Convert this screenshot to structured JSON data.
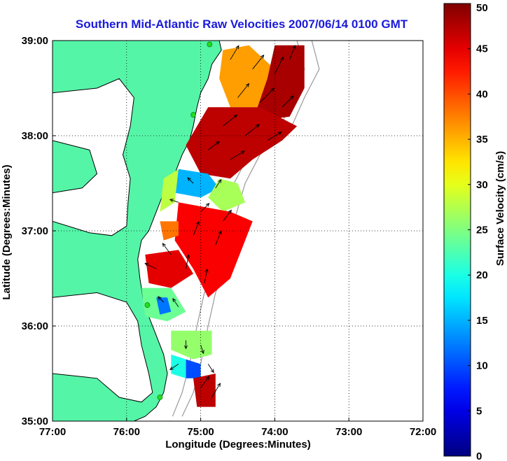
{
  "chart_data": {
    "type": "heatmap",
    "title": "Southern Mid-Atlantic Raw Velocities 2007/06/14 0100 GMT",
    "xlabel": "Longitude (Degrees:Minutes)",
    "ylabel": "Latitude (Degrees:Minutes)",
    "x_ticks": [
      {
        "value": -77,
        "label": "77:00"
      },
      {
        "value": -76,
        "label": "76:00"
      },
      {
        "value": -75,
        "label": "75:00"
      },
      {
        "value": -74,
        "label": "74:00"
      },
      {
        "value": -73,
        "label": "73:00"
      },
      {
        "value": -72,
        "label": "72:00"
      }
    ],
    "y_ticks": [
      {
        "value": 35,
        "label": "35:00"
      },
      {
        "value": 36,
        "label": "36:00"
      },
      {
        "value": 37,
        "label": "37:00"
      },
      {
        "value": 38,
        "label": "38:00"
      },
      {
        "value": 39,
        "label": "39:00"
      }
    ],
    "xlim": [
      -77,
      -72
    ],
    "ylim": [
      35,
      39
    ],
    "grid": true,
    "colorbar": {
      "label": "Surface Velocity (cm/s)",
      "min": 0,
      "max": 50,
      "ticks": [
        "0",
        "5",
        "10",
        "15",
        "20",
        "25",
        "30",
        "35",
        "40",
        "45",
        "50"
      ],
      "colormap": "jet"
    },
    "colors": {
      "land": "#55f5a8",
      "water": "#ffffff",
      "title": "#1a1adb",
      "isobath": "#999999",
      "station": "#22dd22"
    },
    "land_polygon": [
      [
        -77,
        39
      ],
      [
        -74.75,
        39
      ],
      [
        -74.72,
        38.9
      ],
      [
        -74.85,
        38.75
      ],
      [
        -74.9,
        38.6
      ],
      [
        -75.0,
        38.45
      ],
      [
        -75.05,
        38.3
      ],
      [
        -75.1,
        38.1
      ],
      [
        -75.15,
        37.95
      ],
      [
        -75.25,
        37.8
      ],
      [
        -75.35,
        37.6
      ],
      [
        -75.5,
        37.4
      ],
      [
        -75.6,
        37.2
      ],
      [
        -75.7,
        37.0
      ],
      [
        -75.8,
        36.9
      ],
      [
        -75.85,
        36.7
      ],
      [
        -75.82,
        36.5
      ],
      [
        -75.78,
        36.3
      ],
      [
        -75.7,
        36.1
      ],
      [
        -75.6,
        35.9
      ],
      [
        -75.5,
        35.7
      ],
      [
        -75.45,
        35.5
      ],
      [
        -75.5,
        35.3
      ],
      [
        -75.6,
        35.15
      ],
      [
        -75.75,
        35.05
      ],
      [
        -75.9,
        35.0
      ],
      [
        -77,
        35.0
      ]
    ],
    "water_polygons": [
      [
        [
          -77,
          38.45
        ],
        [
          -76.4,
          38.5
        ],
        [
          -76.1,
          38.6
        ],
        [
          -75.9,
          38.4
        ],
        [
          -75.95,
          38.1
        ],
        [
          -76.05,
          37.8
        ],
        [
          -75.95,
          37.55
        ],
        [
          -75.98,
          37.3
        ],
        [
          -76.0,
          37.05
        ],
        [
          -76.2,
          36.95
        ],
        [
          -76.5,
          36.98
        ],
        [
          -77,
          37.1
        ],
        [
          -77,
          37.4
        ],
        [
          -76.6,
          37.45
        ],
        [
          -76.4,
          37.6
        ],
        [
          -76.5,
          37.85
        ],
        [
          -77,
          37.95
        ]
      ],
      [
        [
          -77,
          36.3
        ],
        [
          -76.4,
          36.35
        ],
        [
          -76.0,
          36.25
        ],
        [
          -75.85,
          36.05
        ],
        [
          -75.8,
          35.8
        ],
        [
          -75.7,
          35.5
        ],
        [
          -75.65,
          35.3
        ],
        [
          -75.8,
          35.2
        ],
        [
          -76.1,
          35.25
        ],
        [
          -76.4,
          35.45
        ],
        [
          -77,
          35.5
        ]
      ]
    ],
    "isobaths": [
      [
        [
          -73.5,
          39.0
        ],
        [
          -73.4,
          38.7
        ],
        [
          -73.6,
          38.4
        ],
        [
          -73.8,
          38.05
        ],
        [
          -74.2,
          37.8
        ],
        [
          -74.4,
          37.5
        ],
        [
          -74.55,
          37.1
        ],
        [
          -74.6,
          36.7
        ],
        [
          -74.8,
          36.35
        ],
        [
          -74.9,
          36.0
        ],
        [
          -75.0,
          35.6
        ],
        [
          -75.1,
          35.3
        ],
        [
          -75.25,
          35.05
        ]
      ],
      [
        [
          -73.7,
          39.0
        ],
        [
          -73.6,
          38.7
        ],
        [
          -73.75,
          38.4
        ],
        [
          -73.95,
          38.05
        ],
        [
          -74.35,
          37.8
        ],
        [
          -74.55,
          37.5
        ],
        [
          -74.7,
          37.1
        ],
        [
          -74.75,
          36.7
        ],
        [
          -74.95,
          36.35
        ],
        [
          -75.05,
          36.0
        ],
        [
          -75.15,
          35.6
        ],
        [
          -75.25,
          35.3
        ],
        [
          -75.38,
          35.05
        ]
      ]
    ],
    "stations": [
      [
        -74.88,
        38.96
      ],
      [
        -75.1,
        38.22
      ],
      [
        -75.72,
        36.22
      ],
      [
        -75.55,
        35.25
      ]
    ],
    "velocity_patches": [
      {
        "speed": 36,
        "polygon": [
          [
            -74.7,
            38.9
          ],
          [
            -74.35,
            38.95
          ],
          [
            -74.0,
            38.7
          ],
          [
            -74.2,
            38.3
          ],
          [
            -74.6,
            38.3
          ],
          [
            -74.75,
            38.6
          ]
        ]
      },
      {
        "speed": 48,
        "polygon": [
          [
            -74.0,
            38.95
          ],
          [
            -73.6,
            38.95
          ],
          [
            -73.6,
            38.5
          ],
          [
            -73.8,
            38.2
          ],
          [
            -74.3,
            38.15
          ],
          [
            -74.1,
            38.6
          ]
        ]
      },
      {
        "speed": 47,
        "polygon": [
          [
            -74.9,
            38.3
          ],
          [
            -74.2,
            38.3
          ],
          [
            -73.7,
            38.1
          ],
          [
            -73.9,
            37.95
          ],
          [
            -74.3,
            37.75
          ],
          [
            -74.6,
            37.55
          ],
          [
            -75.0,
            37.6
          ],
          [
            -75.2,
            37.9
          ]
        ]
      },
      {
        "speed": 15,
        "polygon": [
          [
            -75.3,
            37.65
          ],
          [
            -74.9,
            37.6
          ],
          [
            -74.75,
            37.45
          ],
          [
            -75.0,
            37.35
          ],
          [
            -75.35,
            37.4
          ]
        ]
      },
      {
        "speed": 28,
        "polygon": [
          [
            -75.5,
            37.55
          ],
          [
            -75.3,
            37.65
          ],
          [
            -75.35,
            37.3
          ],
          [
            -75.55,
            37.2
          ]
        ]
      },
      {
        "speed": 27,
        "polygon": [
          [
            -74.75,
            37.55
          ],
          [
            -74.5,
            37.5
          ],
          [
            -74.4,
            37.3
          ],
          [
            -74.7,
            37.2
          ],
          [
            -74.9,
            37.35
          ]
        ]
      },
      {
        "speed": 44,
        "polygon": [
          [
            -75.3,
            37.3
          ],
          [
            -74.6,
            37.2
          ],
          [
            -74.3,
            37.1
          ],
          [
            -74.4,
            36.9
          ],
          [
            -74.6,
            36.5
          ],
          [
            -74.9,
            36.3
          ],
          [
            -75.1,
            36.6
          ],
          [
            -75.35,
            36.9
          ]
        ]
      },
      {
        "speed": 38,
        "polygon": [
          [
            -75.55,
            37.1
          ],
          [
            -75.3,
            37.1
          ],
          [
            -75.3,
            36.95
          ],
          [
            -75.5,
            36.9
          ]
        ]
      },
      {
        "speed": 45,
        "polygon": [
          [
            -75.75,
            36.75
          ],
          [
            -75.3,
            36.8
          ],
          [
            -75.1,
            36.55
          ],
          [
            -75.4,
            36.4
          ],
          [
            -75.7,
            36.45
          ]
        ]
      },
      {
        "speed": 24,
        "polygon": [
          [
            -75.8,
            36.4
          ],
          [
            -75.4,
            36.4
          ],
          [
            -75.2,
            36.15
          ],
          [
            -75.45,
            36.05
          ],
          [
            -75.75,
            36.1
          ]
        ]
      },
      {
        "speed": 12,
        "polygon": [
          [
            -75.6,
            36.3
          ],
          [
            -75.45,
            36.3
          ],
          [
            -75.4,
            36.15
          ],
          [
            -75.55,
            36.12
          ]
        ]
      },
      {
        "speed": 26,
        "polygon": [
          [
            -75.4,
            35.95
          ],
          [
            -74.85,
            35.95
          ],
          [
            -74.85,
            35.7
          ],
          [
            -75.1,
            35.65
          ],
          [
            -75.4,
            35.75
          ]
        ]
      },
      {
        "speed": 10,
        "polygon": [
          [
            -75.2,
            35.65
          ],
          [
            -75.0,
            35.6
          ],
          [
            -75.0,
            35.45
          ],
          [
            -75.2,
            35.45
          ]
        ]
      },
      {
        "speed": 20,
        "polygon": [
          [
            -75.4,
            35.7
          ],
          [
            -75.2,
            35.65
          ],
          [
            -75.2,
            35.45
          ],
          [
            -75.4,
            35.5
          ]
        ]
      },
      {
        "speed": 47,
        "polygon": [
          [
            -75.1,
            35.45
          ],
          [
            -74.8,
            35.5
          ],
          [
            -74.8,
            35.15
          ],
          [
            -75.05,
            35.15
          ]
        ]
      }
    ],
    "vectors": [
      {
        "lon": -74.6,
        "lat": 38.8,
        "u": 0.3,
        "v": 0.5
      },
      {
        "lon": -74.3,
        "lat": 38.7,
        "u": 0.4,
        "v": 0.5
      },
      {
        "lon": -74.0,
        "lat": 38.65,
        "u": 0.3,
        "v": 0.6
      },
      {
        "lon": -73.8,
        "lat": 38.8,
        "u": 0.2,
        "v": 0.5
      },
      {
        "lon": -74.5,
        "lat": 38.4,
        "u": 0.4,
        "v": 0.5
      },
      {
        "lon": -74.2,
        "lat": 38.35,
        "u": 0.5,
        "v": 0.5
      },
      {
        "lon": -73.9,
        "lat": 38.3,
        "u": 0.4,
        "v": 0.4
      },
      {
        "lon": -74.7,
        "lat": 38.1,
        "u": 0.5,
        "v": 0.4
      },
      {
        "lon": -74.4,
        "lat": 38.0,
        "u": 0.5,
        "v": 0.4
      },
      {
        "lon": -74.1,
        "lat": 37.95,
        "u": 0.5,
        "v": 0.3
      },
      {
        "lon": -74.9,
        "lat": 37.85,
        "u": 0.4,
        "v": 0.3
      },
      {
        "lon": -74.6,
        "lat": 37.75,
        "u": 0.5,
        "v": 0.3
      },
      {
        "lon": -75.1,
        "lat": 37.5,
        "u": -0.2,
        "v": 0.2
      },
      {
        "lon": -74.8,
        "lat": 37.45,
        "u": 0.2,
        "v": 0.3
      },
      {
        "lon": -75.3,
        "lat": 37.3,
        "u": -0.3,
        "v": 0.1
      },
      {
        "lon": -75.0,
        "lat": 37.2,
        "u": 0.3,
        "v": 0.3
      },
      {
        "lon": -74.7,
        "lat": 37.1,
        "u": 0.3,
        "v": 0.4
      },
      {
        "lon": -75.1,
        "lat": 36.95,
        "u": 0.2,
        "v": 0.5
      },
      {
        "lon": -74.8,
        "lat": 36.85,
        "u": 0.2,
        "v": 0.5
      },
      {
        "lon": -75.4,
        "lat": 36.75,
        "u": -0.3,
        "v": 0.4
      },
      {
        "lon": -75.6,
        "lat": 36.6,
        "u": -0.4,
        "v": 0.2
      },
      {
        "lon": -75.2,
        "lat": 36.6,
        "u": 0.1,
        "v": 0.5
      },
      {
        "lon": -74.95,
        "lat": 36.45,
        "u": 0.1,
        "v": 0.5
      },
      {
        "lon": -75.5,
        "lat": 36.25,
        "u": -0.2,
        "v": 0.2
      },
      {
        "lon": -75.3,
        "lat": 36.2,
        "u": -0.2,
        "v": 0.3
      },
      {
        "lon": -75.2,
        "lat": 35.85,
        "u": 0.0,
        "v": -0.3
      },
      {
        "lon": -75.0,
        "lat": 35.8,
        "u": 0.1,
        "v": -0.3
      },
      {
        "lon": -74.9,
        "lat": 35.6,
        "u": 0.2,
        "v": -0.3
      },
      {
        "lon": -75.3,
        "lat": 35.6,
        "u": -0.3,
        "v": -0.2
      },
      {
        "lon": -75.0,
        "lat": 35.35,
        "u": 0.3,
        "v": 0.4
      },
      {
        "lon": -74.85,
        "lat": 35.25,
        "u": 0.3,
        "v": 0.5
      }
    ]
  }
}
